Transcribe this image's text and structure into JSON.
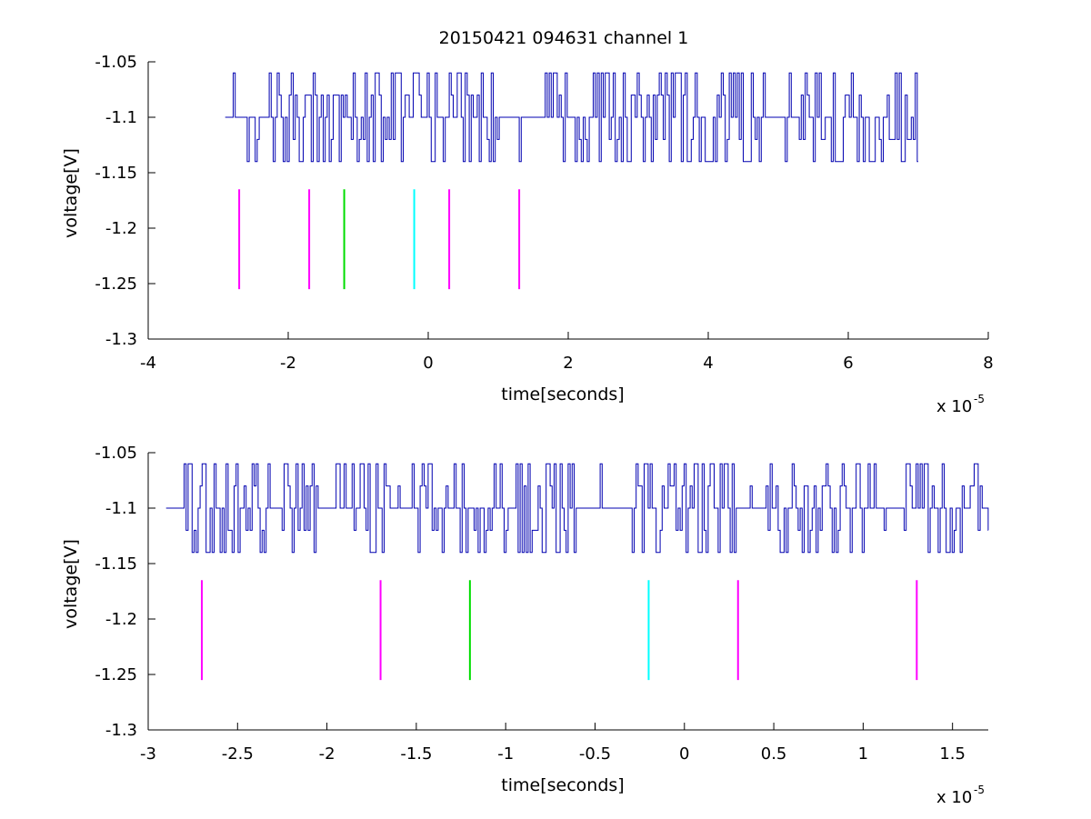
{
  "figure": {
    "title": "20150421 094631 channel 1",
    "background": "#ffffff"
  },
  "colors": {
    "signal": "#0000b0",
    "magenta": "#ff00ff",
    "green": "#00dd00",
    "cyan": "#00ffff"
  },
  "chart_data": [
    {
      "type": "line",
      "title": "20150421 094631 channel 1",
      "xlabel": "time[seconds]",
      "ylabel": "voltage[V]",
      "x_multiplier_base": "x 10",
      "x_multiplier_exp": "-5",
      "xlim": [
        -4,
        8
      ],
      "ylim": [
        -1.3,
        -1.05
      ],
      "xticks": [
        -4,
        -2,
        0,
        2,
        4,
        6,
        8
      ],
      "xtick_labels": [
        "-4",
        "-2",
        "0",
        "2",
        "4",
        "6",
        "8"
      ],
      "yticks": [
        -1.3,
        -1.25,
        -1.2,
        -1.15,
        -1.1,
        -1.05
      ],
      "ytick_labels": [
        "-1.3",
        "-1.25",
        "-1.2",
        "-1.15",
        "-1.1",
        "-1.05"
      ],
      "grid": false,
      "signal": {
        "x_start": -2.9,
        "x_end": 7.0,
        "levels": [
          -1.14,
          -1.12,
          -1.1,
          -1.08,
          -1.06
        ],
        "baseline": -1.1,
        "segments": [
          {
            "from": -2.9,
            "to": -2.3,
            "dense": false
          },
          {
            "from": -2.3,
            "to": -1.0,
            "dense": true
          },
          {
            "from": -1.0,
            "to": 0.9,
            "dense": true
          },
          {
            "from": 0.9,
            "to": 1.7,
            "dense": false
          },
          {
            "from": 1.7,
            "to": 4.7,
            "dense": true
          },
          {
            "from": 4.7,
            "to": 5.3,
            "dense": false
          },
          {
            "from": 5.3,
            "to": 7.0,
            "dense": true
          }
        ]
      },
      "markers": [
        {
          "x": -2.7,
          "y0": -1.255,
          "y1": -1.165,
          "color": "magenta"
        },
        {
          "x": -1.7,
          "y0": -1.255,
          "y1": -1.165,
          "color": "magenta"
        },
        {
          "x": -1.2,
          "y0": -1.255,
          "y1": -1.165,
          "color": "green"
        },
        {
          "x": -0.2,
          "y0": -1.255,
          "y1": -1.165,
          "color": "cyan"
        },
        {
          "x": 0.3,
          "y0": -1.255,
          "y1": -1.165,
          "color": "magenta"
        },
        {
          "x": 1.3,
          "y0": -1.255,
          "y1": -1.165,
          "color": "magenta"
        }
      ]
    },
    {
      "type": "line",
      "title": "",
      "xlabel": "time[seconds]",
      "ylabel": "voltage[V]",
      "x_multiplier_base": "x 10",
      "x_multiplier_exp": "-5",
      "xlim": [
        -3.0,
        1.7
      ],
      "ylim": [
        -1.3,
        -1.05
      ],
      "xticks": [
        -3,
        -2.5,
        -2,
        -1.5,
        -1,
        -0.5,
        0,
        0.5,
        1,
        1.5
      ],
      "xtick_labels": [
        "-3",
        "-2.5",
        "-2",
        "-1.5",
        "-1",
        "-0.5",
        "0",
        "0.5",
        "1",
        "1.5"
      ],
      "yticks": [
        -1.3,
        -1.25,
        -1.2,
        -1.15,
        -1.1,
        -1.05
      ],
      "ytick_labels": [
        "-1.3",
        "-1.25",
        "-1.2",
        "-1.15",
        "-1.1",
        "-1.05"
      ],
      "grid": false,
      "signal": {
        "x_start": -2.9,
        "x_end": 1.7,
        "levels": [
          -1.14,
          -1.12,
          -1.1,
          -1.08,
          -1.06
        ],
        "baseline": -1.1,
        "segments": [
          {
            "from": -2.9,
            "to": -2.8,
            "dense": false
          },
          {
            "from": -2.8,
            "to": -2.05,
            "dense": true
          },
          {
            "from": -2.05,
            "to": -1.95,
            "dense": false
          },
          {
            "from": -1.95,
            "to": -1.6,
            "dense": true
          },
          {
            "from": -1.6,
            "to": -1.5,
            "dense": false
          },
          {
            "from": -1.5,
            "to": -1.35,
            "dense": true
          },
          {
            "from": -1.35,
            "to": -1.25,
            "dense": false
          },
          {
            "from": -1.25,
            "to": -0.6,
            "dense": true
          },
          {
            "from": -0.6,
            "to": -0.3,
            "dense": false
          },
          {
            "from": -0.3,
            "to": 0.3,
            "dense": true
          },
          {
            "from": 0.3,
            "to": 0.45,
            "dense": false
          },
          {
            "from": 0.45,
            "to": 1.0,
            "dense": true
          },
          {
            "from": 1.0,
            "to": 1.2,
            "dense": false
          },
          {
            "from": 1.2,
            "to": 1.7,
            "dense": true
          }
        ]
      },
      "markers": [
        {
          "x": -2.7,
          "y0": -1.255,
          "y1": -1.165,
          "color": "magenta"
        },
        {
          "x": -1.7,
          "y0": -1.255,
          "y1": -1.165,
          "color": "magenta"
        },
        {
          "x": -1.2,
          "y0": -1.255,
          "y1": -1.165,
          "color": "green"
        },
        {
          "x": -0.2,
          "y0": -1.255,
          "y1": -1.165,
          "color": "cyan"
        },
        {
          "x": 0.3,
          "y0": -1.255,
          "y1": -1.165,
          "color": "magenta"
        },
        {
          "x": 1.3,
          "y0": -1.255,
          "y1": -1.165,
          "color": "magenta"
        }
      ]
    }
  ]
}
